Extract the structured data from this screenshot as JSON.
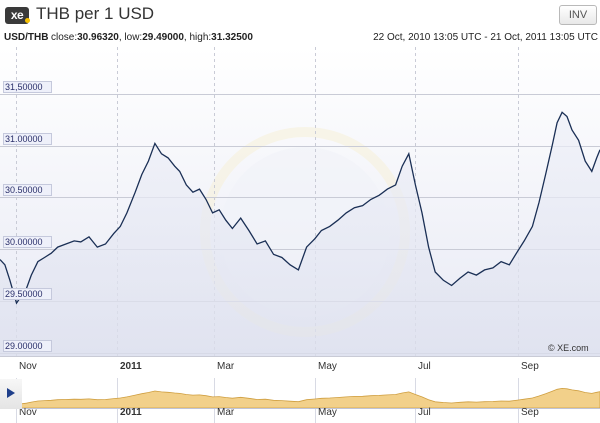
{
  "header": {
    "logo_text": "xe",
    "title": "THB per 1 USD",
    "invert_label": "INV"
  },
  "info_bar": {
    "pair": "USD/THB",
    "close_label": "close:",
    "close_value": "30.96320",
    "low_label": "low:",
    "low_value": "29.49000",
    "high_label": "high:",
    "high_value": "31.32500",
    "date_range": "22 Oct, 2010 13:05 UTC - 21 Oct, 2011 13:05 UTC"
  },
  "watermark": "© XE.com",
  "colors": {
    "line": "#1a2f55",
    "plot_background": "#ffffff",
    "grid": "#c9cbd6",
    "navigator_fill": "#f2d08a",
    "navigator_stroke": "#cf9e3f",
    "accent": "#1f3f8a"
  },
  "icons": {
    "scroll_left": "left-arrow-icon",
    "logo_dot": "logo-dot"
  },
  "chart_data": {
    "type": "line",
    "title": "THB per 1 USD",
    "xlabel": "",
    "ylabel": "",
    "y_ticks": [
      "29.00000",
      "29.50000",
      "30.00000",
      "30.50000",
      "31.00000",
      "31,50000"
    ],
    "y_tick_values": [
      29.0,
      29.5,
      30.0,
      30.5,
      31.0,
      31.5
    ],
    "ylim": [
      28.97,
      31.95
    ],
    "x_tick_labels": [
      "Nov",
      "2011",
      "Mar",
      "May",
      "Jul",
      "Sep"
    ],
    "x_tick_dates": [
      "2010-11-01",
      "2011-01-01",
      "2011-03-01",
      "2011-05-01",
      "2011-07-01",
      "2011-09-01"
    ],
    "x_range": [
      "2010-10-22",
      "2011-10-21"
    ],
    "grid": true,
    "legend": "none",
    "series": [
      {
        "x": [
          "2010-10-22",
          "2010-10-25",
          "2010-10-28",
          "2010-11-01",
          "2010-11-04",
          "2010-11-07",
          "2010-11-10",
          "2010-11-14",
          "2010-11-18",
          "2010-11-22",
          "2010-11-26",
          "2010-12-01",
          "2010-12-06",
          "2010-12-10",
          "2010-12-15",
          "2010-12-20",
          "2010-12-25",
          "2010-12-30",
          "2011-01-03",
          "2011-01-07",
          "2011-01-12",
          "2011-01-16",
          "2011-01-20",
          "2011-01-24",
          "2011-01-28",
          "2011-02-01",
          "2011-02-05",
          "2011-02-08",
          "2011-02-12",
          "2011-02-16",
          "2011-02-20",
          "2011-02-24",
          "2011-02-28",
          "2011-03-04",
          "2011-03-08",
          "2011-03-12",
          "2011-03-17",
          "2011-03-22",
          "2011-03-27",
          "2011-04-01",
          "2011-04-06",
          "2011-04-11",
          "2011-04-16",
          "2011-04-21",
          "2011-04-26",
          "2011-05-01",
          "2011-05-05",
          "2011-05-10",
          "2011-05-15",
          "2011-05-20",
          "2011-05-25",
          "2011-05-30",
          "2011-06-04",
          "2011-06-09",
          "2011-06-14",
          "2011-06-19",
          "2011-06-23",
          "2011-06-27",
          "2011-07-01",
          "2011-07-05",
          "2011-07-09",
          "2011-07-13",
          "2011-07-18",
          "2011-07-23",
          "2011-07-28",
          "2011-08-02",
          "2011-08-07",
          "2011-08-12",
          "2011-08-17",
          "2011-08-22",
          "2011-08-27",
          "2011-09-01",
          "2011-09-05",
          "2011-09-10",
          "2011-09-14",
          "2011-09-18",
          "2011-09-22",
          "2011-09-25",
          "2011-09-28",
          "2011-10-01",
          "2011-10-04",
          "2011-10-08",
          "2011-10-12",
          "2011-10-16",
          "2011-10-19",
          "2011-10-21"
        ],
        "values": [
          29.9,
          29.85,
          29.7,
          29.48,
          29.55,
          29.62,
          29.75,
          29.88,
          29.92,
          29.96,
          30.02,
          30.05,
          30.08,
          30.07,
          30.12,
          30.02,
          30.05,
          30.15,
          30.22,
          30.35,
          30.55,
          30.72,
          30.85,
          31.02,
          30.92,
          30.88,
          30.8,
          30.75,
          30.62,
          30.55,
          30.58,
          30.48,
          30.35,
          30.38,
          30.28,
          30.2,
          30.3,
          30.18,
          30.05,
          30.08,
          29.95,
          29.92,
          29.85,
          29.8,
          30.02,
          30.1,
          30.18,
          30.22,
          30.28,
          30.35,
          30.4,
          30.42,
          30.48,
          30.52,
          30.58,
          30.62,
          30.8,
          30.92,
          30.62,
          30.35,
          30.02,
          29.78,
          29.7,
          29.65,
          29.72,
          29.78,
          29.75,
          29.8,
          29.82,
          29.88,
          29.85,
          29.98,
          30.08,
          30.22,
          30.45,
          30.72,
          31.0,
          31.22,
          31.32,
          31.28,
          31.15,
          31.05,
          30.85,
          30.75,
          30.88,
          30.96
        ]
      }
    ]
  }
}
